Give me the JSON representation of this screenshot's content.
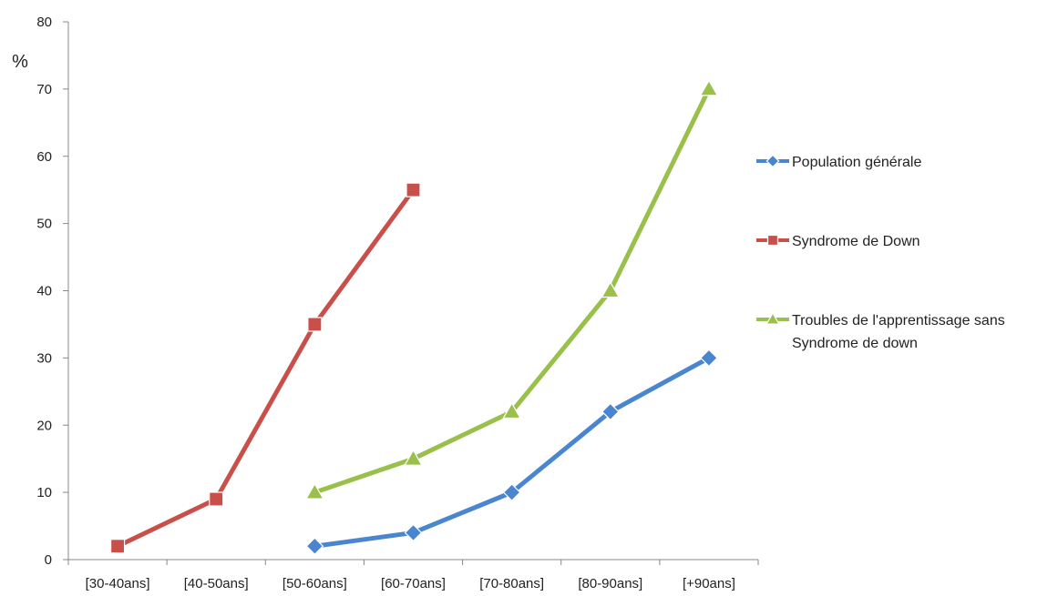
{
  "chart_data": {
    "type": "line",
    "title": "",
    "xlabel": "",
    "ylabel": "%",
    "ylim": [
      0,
      80
    ],
    "yticks": [
      0,
      10,
      20,
      30,
      40,
      50,
      60,
      70,
      80
    ],
    "grid": false,
    "legend_position": "right",
    "categories": [
      "[30-40ans]",
      "[40-50ans]",
      "[50-60ans]",
      "[60-70ans]",
      "[70-80ans]",
      "[80-90ans]",
      "[+90ans]"
    ],
    "series": [
      {
        "name": "Population générale",
        "color": "#4a86d0",
        "marker": "diamond",
        "values": [
          null,
          null,
          2,
          4,
          10,
          22,
          30
        ]
      },
      {
        "name": "Syndrome de Down",
        "color": "#c9504a",
        "marker": "square",
        "values": [
          2,
          9,
          35,
          55,
          null,
          null,
          null
        ]
      },
      {
        "name_lines": [
          "Troubles de l'apprentissage sans",
          "Syndrome de down"
        ],
        "color": "#98c04a",
        "marker": "triangle",
        "values": [
          null,
          null,
          10,
          15,
          22,
          40,
          70
        ]
      }
    ]
  }
}
